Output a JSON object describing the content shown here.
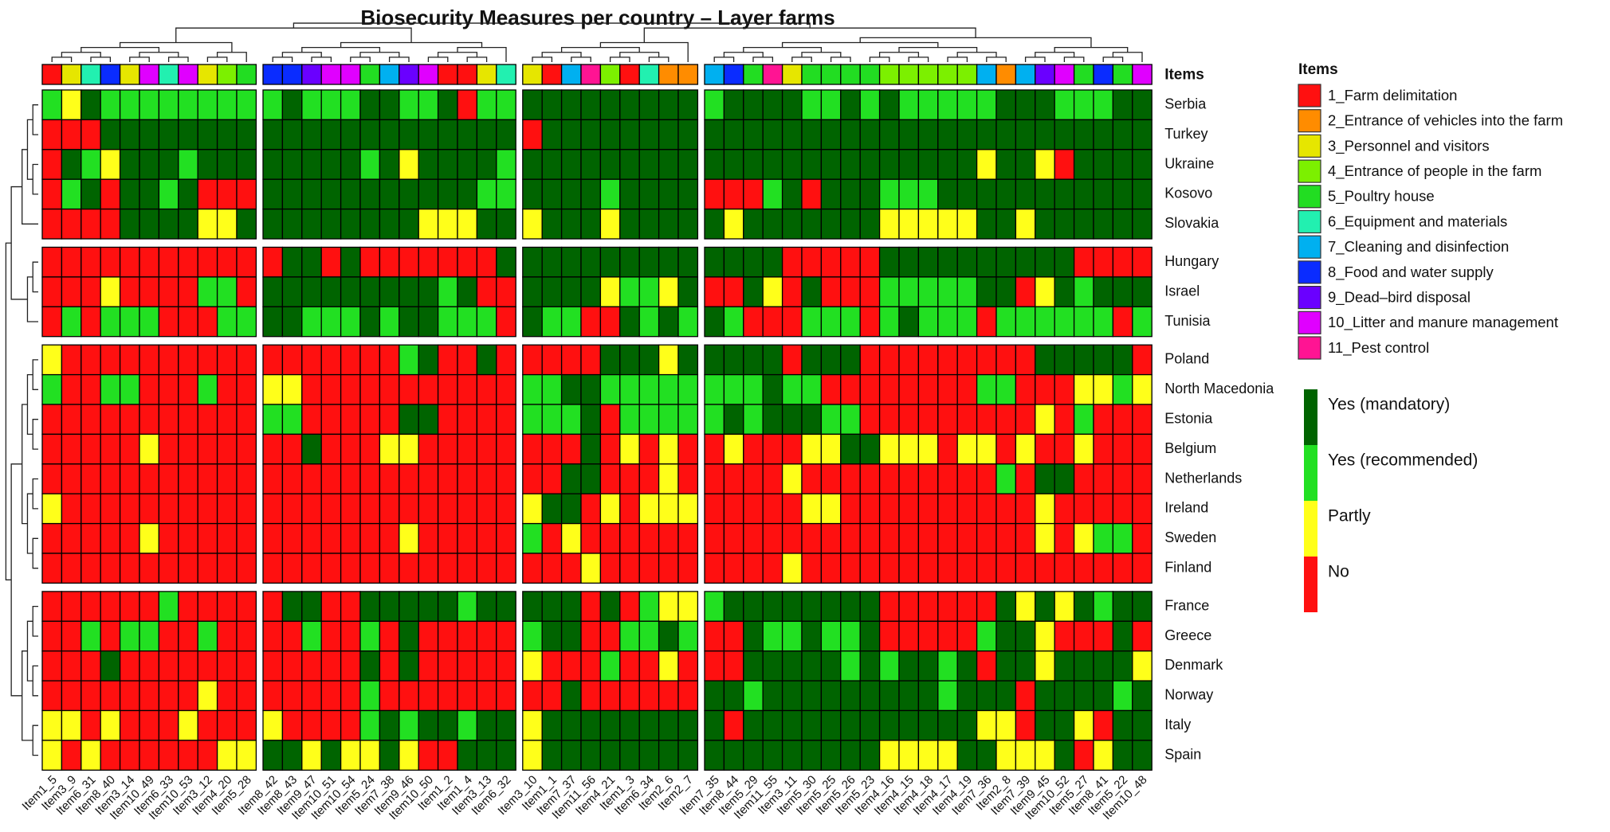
{
  "chart_data": {
    "type": "heatmap",
    "title": "Biosecurity Measures per country – Layer farms",
    "columns": [
      "Item1_5",
      "Item3_9",
      "Item6_31",
      "Item8_40",
      "Item3_14",
      "Item10_49",
      "Item6_33",
      "Item10_53",
      "Item3_12",
      "Item4_20",
      "Item5_28",
      "Item8_42",
      "Item8_43",
      "Item9_47",
      "Item10_51",
      "Item10_54",
      "Item5_24",
      "Item7_38",
      "Item9_46",
      "Item10_50",
      "Item1_2",
      "Item1_4",
      "Item3_13",
      "Item6_32",
      "Item3_10",
      "Item1_1",
      "Item7_37",
      "Item11_56",
      "Item4_21",
      "Item1_3",
      "Item6_34",
      "Item2_6",
      "Item2_7",
      "Item7_35",
      "Item8_44",
      "Item5_29",
      "Item11_55",
      "Item3_11",
      "Item5_30",
      "Item5_25",
      "Item5_26",
      "Item5_23",
      "Item4_16",
      "Item4_15",
      "Item4_18",
      "Item4_17",
      "Item4_19",
      "Item7_36",
      "Item2_8",
      "Item7_39",
      "Item9_45",
      "Item10_52",
      "Item5_27",
      "Item8_41",
      "Item5_22",
      "Item10_48"
    ],
    "column_category": [
      1,
      3,
      6,
      8,
      3,
      10,
      6,
      10,
      3,
      4,
      5,
      8,
      8,
      9,
      10,
      10,
      5,
      7,
      9,
      10,
      1,
      1,
      3,
      6,
      3,
      1,
      7,
      11,
      4,
      1,
      6,
      2,
      2,
      7,
      8,
      5,
      11,
      3,
      5,
      5,
      5,
      5,
      4,
      4,
      4,
      4,
      4,
      7,
      2,
      7,
      9,
      10,
      5,
      8,
      5,
      10
    ],
    "column_splits": [
      11,
      13,
      9,
      23
    ],
    "rows": [
      "Serbia",
      "Turkey",
      "Ukraine",
      "Kosovo",
      "Slovakia",
      "Hungary",
      "Israel",
      "Tunisia",
      "Poland",
      "North Macedonia",
      "Estonia",
      "Belgium",
      "Netherlands",
      "Ireland",
      "Sweden",
      "Finland",
      "France",
      "Greece",
      "Denmark",
      "Norway",
      "Italy",
      "Spain"
    ],
    "row_splits": [
      5,
      3,
      8,
      6
    ],
    "values": [
      [
        1,
        2,
        0,
        1,
        1,
        1,
        1,
        1,
        1,
        1,
        1,
        1,
        0,
        1,
        1,
        1,
        0,
        0,
        1,
        1,
        0,
        3,
        1,
        1,
        0,
        0,
        0,
        0,
        0,
        0,
        0,
        0,
        0,
        1,
        0,
        0,
        0,
        0,
        1,
        1,
        0,
        1,
        0,
        1,
        1,
        1,
        1,
        1,
        0,
        0,
        0,
        1,
        1,
        1,
        0,
        0
      ],
      [
        3,
        3,
        3,
        0,
        0,
        0,
        0,
        0,
        0,
        0,
        0,
        0,
        0,
        0,
        0,
        0,
        0,
        0,
        0,
        0,
        0,
        0,
        0,
        0,
        3,
        0,
        0,
        0,
        0,
        0,
        0,
        0,
        0,
        0,
        0,
        0,
        0,
        0,
        0,
        0,
        0,
        0,
        0,
        0,
        0,
        0,
        0,
        0,
        0,
        0,
        0,
        0,
        0,
        0,
        0,
        0
      ],
      [
        3,
        0,
        1,
        2,
        0,
        0,
        0,
        1,
        0,
        0,
        0,
        0,
        0,
        0,
        0,
        0,
        1,
        0,
        2,
        0,
        0,
        0,
        0,
        1,
        0,
        0,
        0,
        0,
        0,
        0,
        0,
        0,
        0,
        0,
        0,
        0,
        0,
        0,
        0,
        0,
        0,
        0,
        0,
        0,
        0,
        0,
        0,
        2,
        0,
        0,
        2,
        3,
        0,
        0,
        0,
        0
      ],
      [
        3,
        1,
        0,
        3,
        0,
        0,
        1,
        0,
        3,
        3,
        3,
        0,
        0,
        0,
        0,
        0,
        0,
        0,
        0,
        0,
        0,
        0,
        1,
        1,
        0,
        0,
        0,
        0,
        1,
        0,
        0,
        0,
        0,
        3,
        3,
        3,
        1,
        0,
        3,
        0,
        0,
        0,
        1,
        1,
        1,
        0,
        0,
        0,
        0,
        0,
        0,
        0,
        0,
        0,
        0,
        0
      ],
      [
        3,
        3,
        3,
        3,
        0,
        0,
        0,
        0,
        2,
        2,
        0,
        0,
        0,
        0,
        0,
        0,
        0,
        0,
        0,
        2,
        2,
        2,
        0,
        0,
        2,
        0,
        0,
        0,
        2,
        0,
        0,
        0,
        0,
        0,
        2,
        0,
        0,
        0,
        0,
        0,
        0,
        0,
        2,
        2,
        2,
        2,
        2,
        0,
        0,
        2,
        0,
        0,
        0,
        0,
        0,
        0
      ],
      [
        3,
        3,
        3,
        3,
        3,
        3,
        3,
        3,
        3,
        3,
        3,
        3,
        0,
        0,
        3,
        0,
        3,
        3,
        3,
        3,
        3,
        3,
        3,
        0,
        0,
        0,
        0,
        0,
        0,
        0,
        0,
        0,
        0,
        0,
        0,
        0,
        0,
        3,
        3,
        3,
        3,
        3,
        0,
        0,
        0,
        0,
        0,
        0,
        0,
        0,
        0,
        0,
        3,
        3,
        3,
        3
      ],
      [
        3,
        3,
        3,
        2,
        3,
        3,
        3,
        3,
        1,
        1,
        3,
        0,
        0,
        0,
        0,
        0,
        0,
        0,
        0,
        0,
        1,
        0,
        3,
        3,
        0,
        0,
        0,
        0,
        2,
        1,
        1,
        2,
        0,
        3,
        3,
        0,
        2,
        3,
        0,
        3,
        3,
        3,
        1,
        1,
        1,
        1,
        1,
        0,
        0,
        3,
        2,
        0,
        1,
        0,
        0,
        0
      ],
      [
        3,
        1,
        3,
        1,
        1,
        1,
        3,
        3,
        3,
        1,
        1,
        0,
        0,
        1,
        1,
        1,
        0,
        1,
        0,
        0,
        1,
        1,
        1,
        3,
        0,
        1,
        1,
        3,
        3,
        0,
        1,
        0,
        1,
        0,
        1,
        3,
        3,
        3,
        1,
        1,
        1,
        3,
        1,
        0,
        1,
        1,
        1,
        3,
        1,
        1,
        1,
        1,
        1,
        1,
        3,
        1
      ],
      [
        2,
        3,
        3,
        3,
        3,
        3,
        3,
        3,
        3,
        3,
        3,
        3,
        3,
        3,
        3,
        3,
        3,
        3,
        1,
        0,
        3,
        3,
        0,
        3,
        3,
        3,
        3,
        3,
        0,
        0,
        0,
        2,
        0,
        0,
        0,
        0,
        0,
        3,
        0,
        0,
        0,
        3,
        3,
        3,
        3,
        3,
        3,
        3,
        3,
        3,
        0,
        0,
        0,
        0,
        0,
        3
      ],
      [
        1,
        3,
        3,
        1,
        1,
        3,
        3,
        3,
        1,
        3,
        3,
        2,
        2,
        3,
        3,
        3,
        3,
        3,
        3,
        3,
        3,
        3,
        3,
        3,
        1,
        1,
        0,
        0,
        1,
        1,
        1,
        1,
        1,
        1,
        1,
        1,
        0,
        1,
        1,
        3,
        3,
        3,
        3,
        3,
        3,
        3,
        3,
        1,
        1,
        3,
        3,
        3,
        2,
        2,
        1,
        2
      ],
      [
        3,
        3,
        3,
        3,
        3,
        3,
        3,
        3,
        3,
        3,
        3,
        1,
        1,
        3,
        3,
        3,
        3,
        3,
        0,
        0,
        3,
        3,
        3,
        3,
        1,
        1,
        1,
        0,
        3,
        1,
        1,
        1,
        1,
        1,
        0,
        1,
        0,
        0,
        0,
        1,
        1,
        3,
        3,
        3,
        3,
        3,
        3,
        3,
        3,
        3,
        2,
        3,
        1,
        3,
        3,
        3
      ],
      [
        3,
        3,
        3,
        3,
        3,
        2,
        3,
        3,
        3,
        3,
        3,
        3,
        3,
        0,
        3,
        3,
        3,
        2,
        2,
        3,
        3,
        3,
        3,
        3,
        3,
        3,
        3,
        0,
        3,
        2,
        3,
        2,
        3,
        3,
        2,
        3,
        3,
        3,
        2,
        2,
        0,
        0,
        2,
        2,
        2,
        3,
        2,
        2,
        3,
        2,
        3,
        3,
        2,
        3,
        3,
        3
      ],
      [
        3,
        3,
        3,
        3,
        3,
        3,
        3,
        3,
        3,
        3,
        3,
        3,
        3,
        3,
        3,
        3,
        3,
        3,
        3,
        3,
        3,
        3,
        3,
        3,
        3,
        3,
        0,
        0,
        3,
        3,
        3,
        2,
        3,
        3,
        3,
        3,
        3,
        2,
        3,
        3,
        3,
        3,
        3,
        3,
        3,
        3,
        3,
        3,
        1,
        3,
        0,
        0,
        3,
        3,
        3,
        3
      ],
      [
        2,
        3,
        3,
        3,
        3,
        3,
        3,
        3,
        3,
        3,
        3,
        3,
        3,
        3,
        3,
        3,
        3,
        3,
        3,
        3,
        3,
        3,
        3,
        3,
        2,
        0,
        0,
        3,
        2,
        3,
        2,
        2,
        2,
        3,
        3,
        3,
        3,
        3,
        2,
        2,
        3,
        3,
        3,
        3,
        3,
        3,
        3,
        3,
        3,
        3,
        2,
        3,
        3,
        3,
        3,
        3
      ],
      [
        3,
        3,
        3,
        3,
        3,
        2,
        3,
        3,
        3,
        3,
        3,
        3,
        3,
        3,
        3,
        3,
        3,
        3,
        2,
        3,
        3,
        3,
        3,
        3,
        1,
        3,
        2,
        3,
        3,
        3,
        3,
        3,
        3,
        3,
        3,
        3,
        3,
        3,
        3,
        3,
        3,
        3,
        3,
        3,
        3,
        3,
        3,
        3,
        3,
        3,
        2,
        3,
        2,
        1,
        1,
        3
      ],
      [
        3,
        3,
        3,
        3,
        3,
        3,
        3,
        3,
        3,
        3,
        3,
        3,
        3,
        3,
        3,
        3,
        3,
        3,
        3,
        3,
        3,
        3,
        3,
        3,
        3,
        3,
        3,
        2,
        3,
        3,
        3,
        3,
        3,
        3,
        3,
        3,
        3,
        2,
        3,
        3,
        3,
        3,
        3,
        3,
        3,
        3,
        3,
        3,
        3,
        3,
        3,
        3,
        3,
        3,
        3,
        3
      ],
      [
        3,
        3,
        3,
        3,
        3,
        3,
        1,
        3,
        3,
        3,
        3,
        3,
        0,
        0,
        3,
        3,
        0,
        0,
        0,
        0,
        0,
        1,
        0,
        0,
        0,
        0,
        0,
        3,
        0,
        3,
        1,
        2,
        2,
        1,
        0,
        0,
        0,
        0,
        0,
        0,
        0,
        0,
        3,
        3,
        3,
        3,
        3,
        3,
        0,
        2,
        0,
        2,
        0,
        1,
        0,
        0
      ],
      [
        3,
        3,
        1,
        3,
        1,
        1,
        3,
        3,
        1,
        3,
        3,
        3,
        3,
        1,
        3,
        3,
        1,
        3,
        0,
        3,
        3,
        3,
        3,
        3,
        1,
        0,
        0,
        3,
        3,
        1,
        1,
        0,
        1,
        3,
        3,
        0,
        1,
        1,
        0,
        1,
        1,
        0,
        3,
        3,
        3,
        3,
        3,
        1,
        0,
        0,
        2,
        3,
        3,
        3,
        0,
        3
      ],
      [
        3,
        3,
        3,
        0,
        3,
        3,
        3,
        3,
        3,
        3,
        3,
        3,
        3,
        3,
        3,
        3,
        0,
        3,
        0,
        3,
        3,
        3,
        3,
        3,
        2,
        3,
        3,
        3,
        1,
        3,
        3,
        2,
        3,
        3,
        3,
        0,
        0,
        0,
        0,
        0,
        1,
        0,
        1,
        0,
        0,
        1,
        0,
        3,
        0,
        0,
        2,
        0,
        0,
        0,
        0,
        2
      ],
      [
        3,
        3,
        3,
        3,
        3,
        3,
        3,
        3,
        2,
        3,
        3,
        3,
        3,
        3,
        3,
        3,
        1,
        3,
        3,
        3,
        3,
        3,
        3,
        3,
        3,
        3,
        0,
        3,
        3,
        3,
        3,
        3,
        3,
        0,
        0,
        1,
        0,
        0,
        0,
        0,
        0,
        0,
        0,
        0,
        0,
        1,
        0,
        0,
        0,
        3,
        0,
        0,
        0,
        0,
        1,
        0
      ],
      [
        2,
        2,
        3,
        2,
        3,
        3,
        3,
        2,
        3,
        3,
        3,
        2,
        3,
        3,
        3,
        3,
        1,
        0,
        1,
        0,
        0,
        1,
        0,
        0,
        2,
        0,
        0,
        0,
        0,
        0,
        0,
        0,
        0,
        0,
        3,
        0,
        0,
        0,
        0,
        0,
        0,
        0,
        0,
        0,
        0,
        0,
        0,
        2,
        2,
        3,
        0,
        0,
        2,
        3,
        0,
        0
      ],
      [
        2,
        3,
        2,
        3,
        3,
        3,
        3,
        3,
        3,
        2,
        2,
        0,
        0,
        2,
        0,
        2,
        2,
        0,
        2,
        3,
        3,
        0,
        0,
        0,
        2,
        0,
        0,
        0,
        0,
        0,
        0,
        0,
        0,
        0,
        0,
        0,
        0,
        0,
        0,
        0,
        0,
        0,
        2,
        2,
        2,
        2,
        0,
        0,
        2,
        2,
        2,
        0,
        3,
        2,
        0,
        0
      ]
    ],
    "levels": [
      {
        "label": "Yes (mandatory)",
        "color": "#006400"
      },
      {
        "label": "Yes (recommended)",
        "color": "#22e022"
      },
      {
        "label": "Partly",
        "color": "#ffff1a"
      },
      {
        "label": "No",
        "color": "#ff1010"
      }
    ],
    "items": {
      "title": "Items",
      "labels": [
        "1_Farm delimitation",
        "2_Entrance of vehicles into the farm",
        "3_Personnel and visitors",
        "4_Entrance of people in the farm",
        "5_Poultry house",
        "6_Equipment and materials",
        "7_Cleaning and disinfection",
        "8_Food and water supply",
        "9_Dead–bird disposal",
        "10_Litter and manure management",
        "11_Pest control"
      ],
      "colors": [
        "#ff1010",
        "#ff8c00",
        "#e6e600",
        "#7cf000",
        "#22dd22",
        "#22f0b0",
        "#00b0f0",
        "#0a2cff",
        "#6a00ff",
        "#e000ff",
        "#ff1493"
      ]
    }
  }
}
